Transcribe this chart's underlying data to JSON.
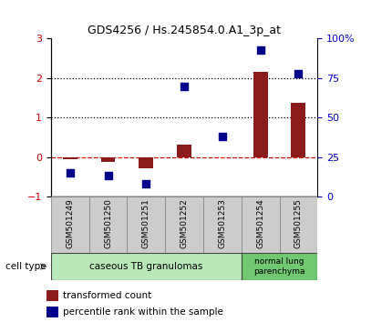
{
  "title": "GDS4256 / Hs.245854.0.A1_3p_at",
  "samples": [
    "GSM501249",
    "GSM501250",
    "GSM501251",
    "GSM501252",
    "GSM501253",
    "GSM501254",
    "GSM501255"
  ],
  "transformed_count": [
    -0.05,
    -0.12,
    -0.28,
    0.32,
    -0.02,
    2.15,
    1.38
  ],
  "percentile_rank": [
    15.0,
    13.5,
    8.0,
    70.0,
    38.0,
    93.0,
    78.0
  ],
  "bar_color": "#8B1A1A",
  "dot_color": "#00008B",
  "ylim_left": [
    -1,
    3
  ],
  "ylim_right": [
    0,
    100
  ],
  "yticks_left": [
    -1,
    0,
    1,
    2,
    3
  ],
  "yticks_right": [
    0,
    25,
    50,
    75,
    100
  ],
  "ytick_labels_right": [
    "0",
    "25",
    "50",
    "75",
    "100%"
  ],
  "group1_label": "caseous TB granulomas",
  "group2_label": "normal lung\nparenchyma",
  "cell_type_label": "cell type",
  "legend_bar_label": "transformed count",
  "legend_dot_label": "percentile rank within the sample",
  "group1_color": "#b8e8b8",
  "group2_color": "#70c870",
  "tick_label_color_left": "#CC0000",
  "tick_label_color_right": "#0000CC",
  "label_box_color": "#cccccc",
  "label_box_edge": "#888888"
}
